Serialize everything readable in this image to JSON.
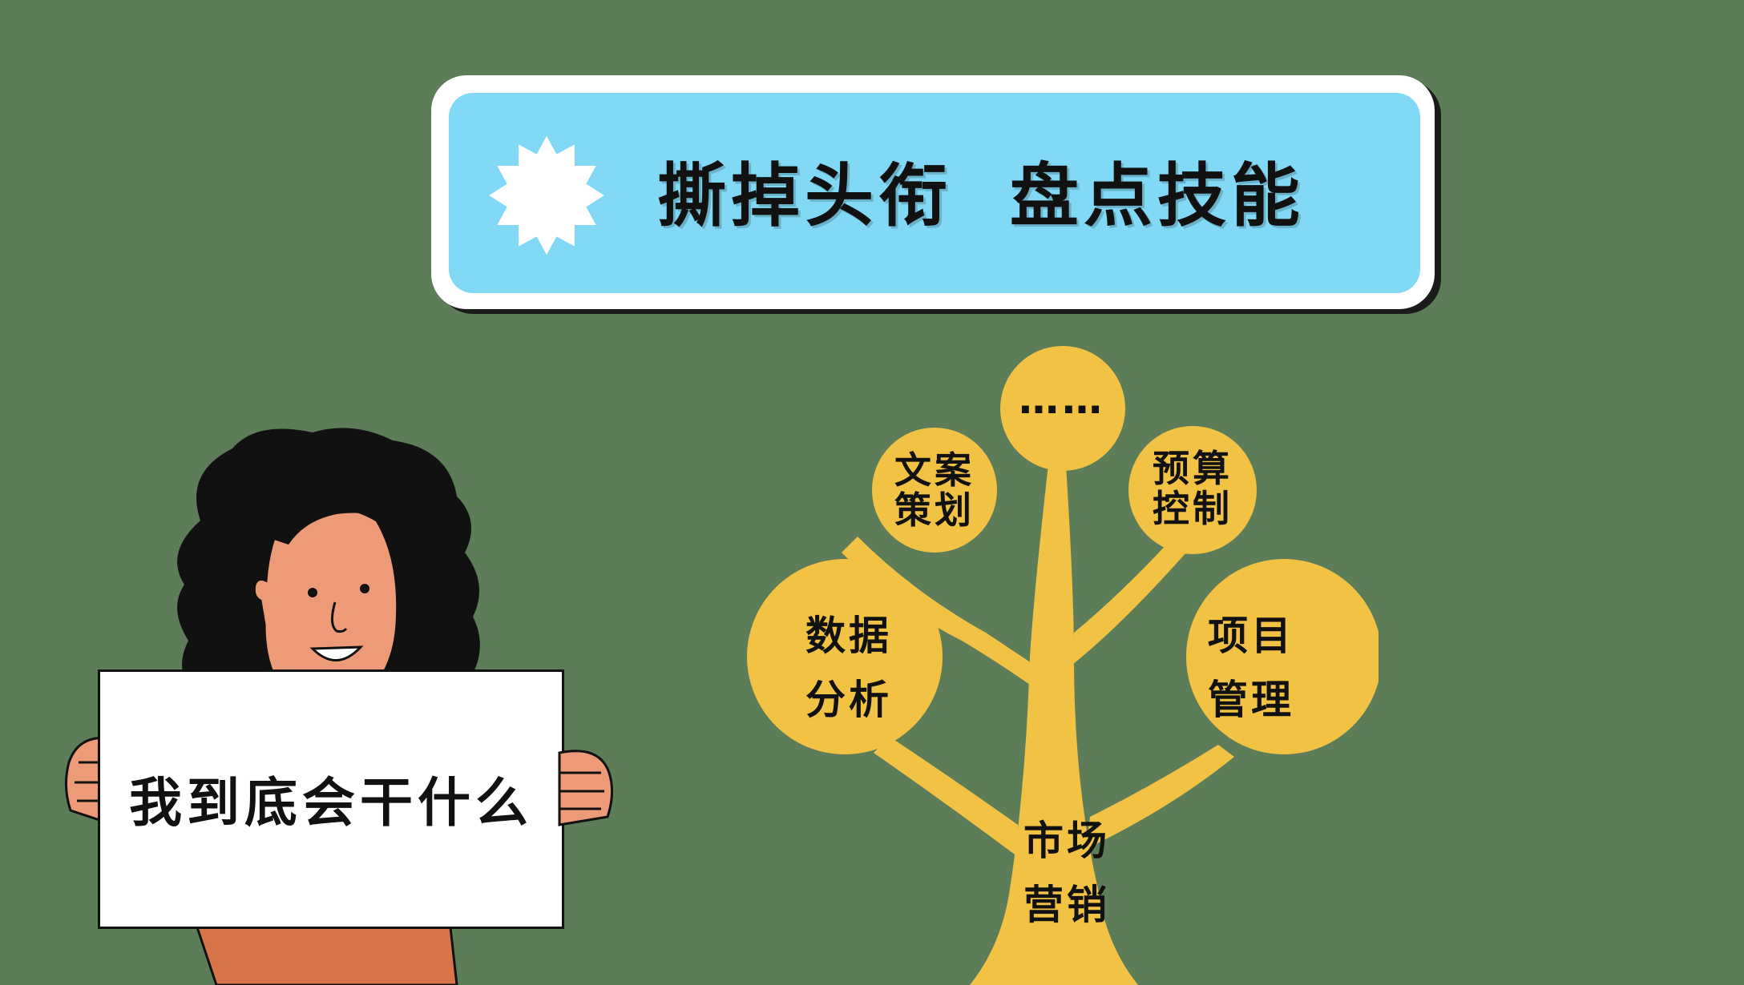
{
  "banner": {
    "title": "撕掉头衔  盘点技能",
    "icon": "sun-burst-icon"
  },
  "sign": {
    "text": "我到底会干什么"
  },
  "tree": {
    "trunk_label": "市场\n营销",
    "nodes": [
      {
        "id": "top",
        "label": "……"
      },
      {
        "id": "copywriting",
        "label": "文案\n策划"
      },
      {
        "id": "budget",
        "label": "预算\n控制"
      },
      {
        "id": "data",
        "label": "数据\n分析"
      },
      {
        "id": "project",
        "label": "项目\n管理"
      }
    ]
  },
  "colors": {
    "background": "#5c7d58",
    "banner": "#82d9f6",
    "tree": "#f2c244",
    "shirt": "#d8744a",
    "skin": "#ec9a78"
  }
}
